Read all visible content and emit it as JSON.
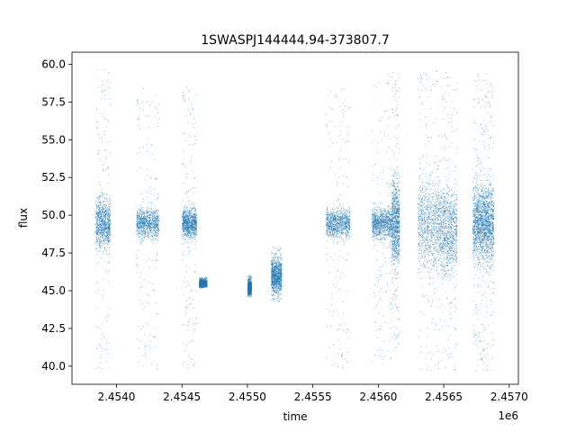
{
  "chart_data": {
    "type": "scatter",
    "title": "1SWASPJ144444.94-373807.7",
    "xlabel": "time",
    "ylabel": "flux",
    "x_offset_label": "1e6",
    "xlim": [
      2.45366,
      2.45707
    ],
    "ylim": [
      38.8,
      60.8
    ],
    "x_ticks": [
      2.454,
      2.4545,
      2.455,
      2.4555,
      2.456,
      2.4565,
      2.457
    ],
    "x_tick_labels": [
      "2.4540",
      "2.4545",
      "2.4550",
      "2.4555",
      "2.4560",
      "2.4565",
      "2.4570"
    ],
    "y_ticks": [
      40.0,
      42.5,
      45.0,
      47.5,
      50.0,
      52.5,
      55.0,
      57.5,
      60.0
    ],
    "y_tick_labels": [
      "40.0",
      "42.5",
      "45.0",
      "47.5",
      "50.0",
      "52.5",
      "55.0",
      "57.5",
      "60.0"
    ],
    "grid": false,
    "marker_color": "#1f77b4",
    "series": [
      {
        "x_units": "1e6",
        "segments": [
          {
            "x_start": 2.45384,
            "x_end": 2.45395,
            "center": 49.5,
            "core_low": 47.0,
            "core_high": 52.0,
            "low": 39.8,
            "high": 59.7
          },
          {
            "x_start": 2.45415,
            "x_end": 2.45432,
            "center": 49.5,
            "core_low": 48.0,
            "core_high": 51.0,
            "low": 39.8,
            "high": 59.2
          },
          {
            "x_start": 2.4545,
            "x_end": 2.45461,
            "center": 49.5,
            "core_low": 48.0,
            "core_high": 51.0,
            "low": 39.8,
            "high": 58.5
          },
          {
            "x_start": 2.45463,
            "x_end": 2.45469,
            "center": 45.5,
            "core_low": 45.2,
            "core_high": 45.9,
            "low": 45.2,
            "high": 45.9
          },
          {
            "x_start": 2.455,
            "x_end": 2.45503,
            "center": 45.2,
            "core_low": 44.7,
            "core_high": 45.9,
            "low": 44.6,
            "high": 46.0
          },
          {
            "x_start": 2.45518,
            "x_end": 2.45526,
            "center": 46.0,
            "core_low": 44.5,
            "core_high": 47.8,
            "low": 44.3,
            "high": 47.9
          },
          {
            "x_start": 2.4556,
            "x_end": 2.45578,
            "center": 49.5,
            "core_low": 48.0,
            "core_high": 51.0,
            "low": 39.8,
            "high": 58.7
          },
          {
            "x_start": 2.45595,
            "x_end": 2.4561,
            "center": 49.5,
            "core_low": 48.0,
            "core_high": 51.0,
            "low": 40.0,
            "high": 59.5
          },
          {
            "x_start": 2.4561,
            "x_end": 2.45616,
            "center": 49.5,
            "core_low": 45.5,
            "core_high": 54.0,
            "low": 41.0,
            "high": 59.5
          },
          {
            "x_start": 2.4563,
            "x_end": 2.45647,
            "center": 49.5,
            "core_low": 45.0,
            "core_high": 54.0,
            "low": 39.6,
            "high": 59.7
          },
          {
            "x_start": 2.45647,
            "x_end": 2.4566,
            "center": 49.0,
            "core_low": 44.5,
            "core_high": 53.5,
            "low": 39.7,
            "high": 59.7
          },
          {
            "x_start": 2.45672,
            "x_end": 2.4568,
            "center": 49.5,
            "core_low": 46.0,
            "core_high": 53.5,
            "low": 39.7,
            "high": 59.6
          },
          {
            "x_start": 2.4568,
            "x_end": 2.45688,
            "center": 49.5,
            "core_low": 45.5,
            "core_high": 53.5,
            "low": 39.7,
            "high": 59.5
          }
        ]
      }
    ]
  }
}
